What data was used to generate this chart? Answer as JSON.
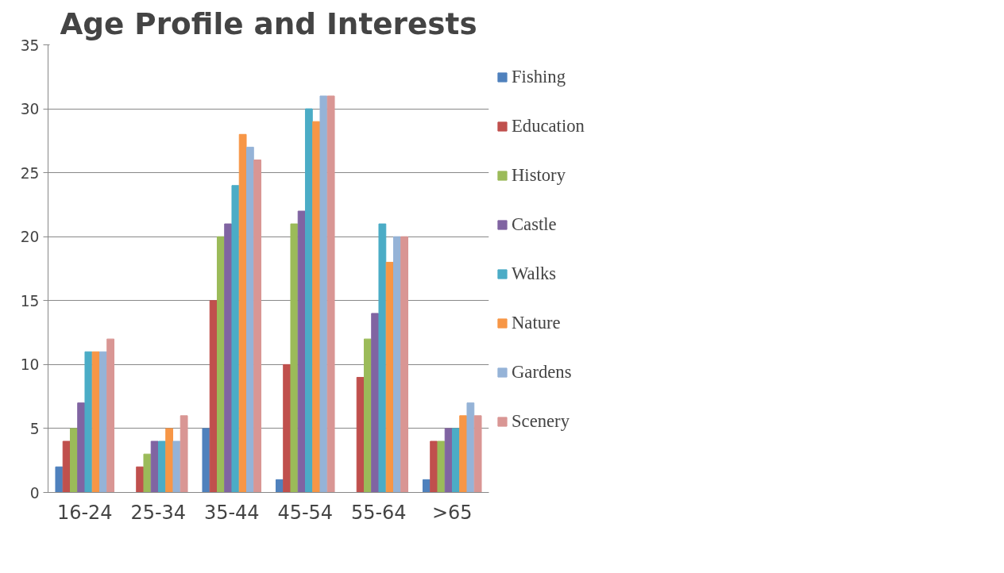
{
  "chart_data": {
    "type": "bar",
    "title": "Age Profile and Interests",
    "categories": [
      "16-24",
      "25-34",
      "35-44",
      "45-54",
      "55-64",
      ">65"
    ],
    "series": [
      {
        "name": "Fishing",
        "color": "#4f81bd",
        "values": [
          2,
          0,
          5,
          1,
          0,
          1
        ]
      },
      {
        "name": "Education",
        "color": "#c0504d",
        "values": [
          4,
          2,
          15,
          10,
          9,
          4
        ]
      },
      {
        "name": "History",
        "color": "#9bbb59",
        "values": [
          5,
          3,
          20,
          21,
          12,
          4
        ]
      },
      {
        "name": "Castle",
        "color": "#8064a2",
        "values": [
          7,
          4,
          21,
          22,
          14,
          5
        ]
      },
      {
        "name": "Walks",
        "color": "#4bacc6",
        "values": [
          11,
          4,
          24,
          30,
          21,
          5
        ]
      },
      {
        "name": "Nature",
        "color": "#f79646",
        "values": [
          11,
          5,
          28,
          29,
          18,
          6
        ]
      },
      {
        "name": "Gardens",
        "color": "#95b3d7",
        "values": [
          11,
          4,
          27,
          31,
          20,
          7
        ]
      },
      {
        "name": "Scenery",
        "color": "#d99694",
        "values": [
          12,
          6,
          26,
          31,
          20,
          6
        ]
      }
    ],
    "ylim": [
      0,
      35
    ],
    "yticks": [
      0,
      5,
      10,
      15,
      20,
      25,
      30,
      35
    ],
    "grid": "y",
    "legend": "right"
  }
}
